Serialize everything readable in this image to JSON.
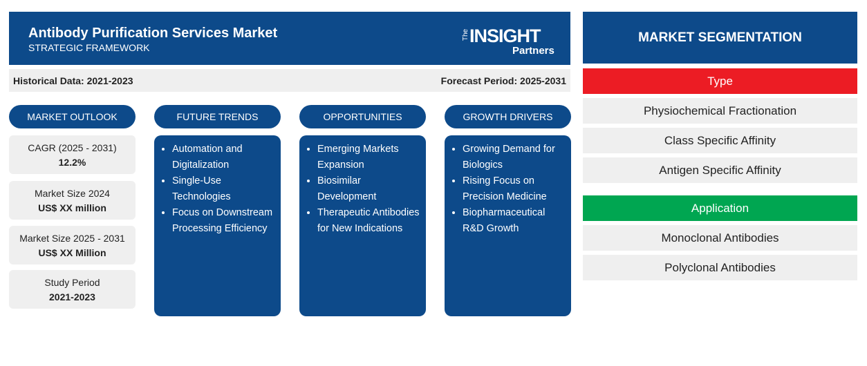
{
  "header": {
    "title": "Antibody Purification Services Market",
    "subtitle": "STRATEGIC FRAMEWORK"
  },
  "logo": {
    "prefix": "The",
    "name": "INSIGHT",
    "suffix": "Partners"
  },
  "periods": {
    "historical": "Historical Data: 2021-2023",
    "forecast": "Forecast Period: 2025-2031"
  },
  "market_outlook": {
    "title": "MARKET OUTLOOK",
    "items": [
      {
        "label": "CAGR (2025 - 2031)",
        "value": "12.2%"
      },
      {
        "label": "Market Size 2024",
        "value": "US$ XX million"
      },
      {
        "label": "Market Size 2025 - 2031",
        "value": "US$ XX Million"
      },
      {
        "label": "Study Period",
        "value": "2021-2023"
      }
    ]
  },
  "columns": [
    {
      "title": "FUTURE TRENDS",
      "items": [
        "Automation and Digitalization",
        "Single-Use Technologies",
        "Focus on Downstream Processing Efficiency"
      ]
    },
    {
      "title": "OPPORTUNITIES",
      "items": [
        "Emerging Markets Expansion",
        "Biosimilar Development",
        "Therapeutic Antibodies for New Indications"
      ]
    },
    {
      "title": "GROWTH DRIVERS",
      "items": [
        "Growing Demand for Biologics",
        "Rising Focus on Precision Medicine",
        "Biopharmaceutical R&D Growth"
      ]
    }
  ],
  "segmentation": {
    "title": "MARKET SEGMENTATION",
    "groups": [
      {
        "name": "Type",
        "items": [
          "Physiochemical Fractionation",
          "Class Specific Affinity",
          "Antigen Specific Affinity"
        ]
      },
      {
        "name": "Application",
        "items": [
          "Monoclonal Antibodies",
          "Polyclonal Antibodies"
        ]
      }
    ]
  }
}
